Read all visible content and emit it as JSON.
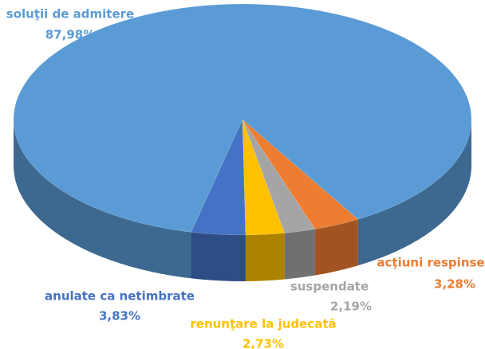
{
  "chart_data": {
    "type": "pie",
    "categories": [
      "anulate ca netimbrate",
      "renunţare la judecată",
      "suspendate",
      "acţiuni respinse",
      "soluţii de admitere"
    ],
    "values": [
      3.83,
      2.73,
      2.19,
      3.28,
      87.98
    ],
    "value_labels": [
      "3,83%",
      "2,73%",
      "2,19%",
      "3,28%",
      "87,98%"
    ],
    "colors": [
      "#4472c4",
      "#ffc000",
      "#a5a5a5",
      "#ed7d31",
      "#5b9bd5"
    ]
  }
}
